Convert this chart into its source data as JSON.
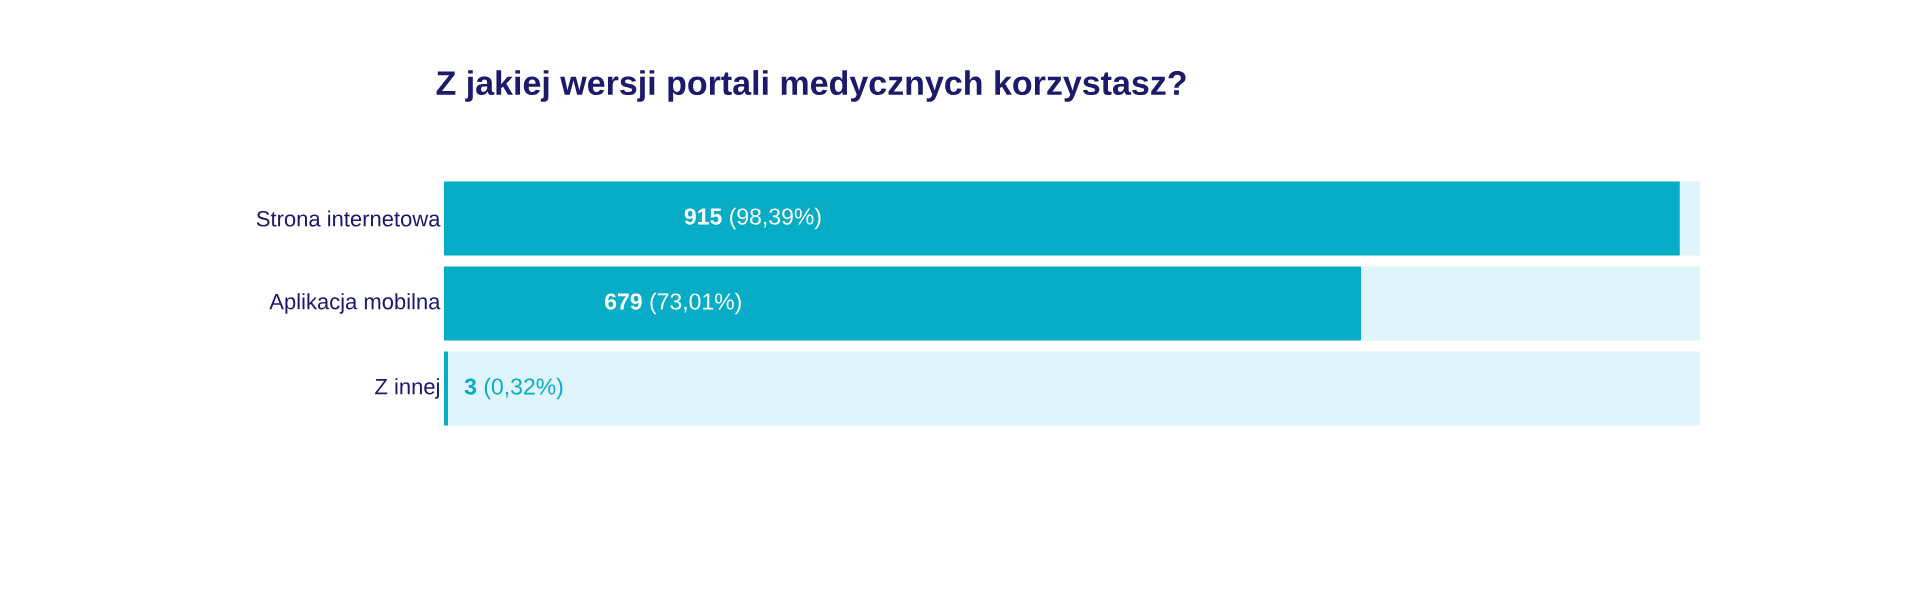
{
  "chart_data": {
    "type": "bar",
    "orientation": "horizontal",
    "stacked": true,
    "title": "Z jakiej wersji portali medycznych korzystasz?",
    "categories": [
      "Strona internetowa",
      "Aplikacja mobilna",
      "Z innej"
    ],
    "series": [
      {
        "color": "#07acc6",
        "values": [
          98.39,
          73.01,
          0.32
        ],
        "value_labels": [
          "**915** (98,39%)",
          "**679** (73,01%)",
          "**3** (0,32%)"
        ]
      },
      {
        "color": "#e0f4fc",
        "values": [
          1.61,
          26.99,
          99.68
        ]
      }
    ]
  }
}
